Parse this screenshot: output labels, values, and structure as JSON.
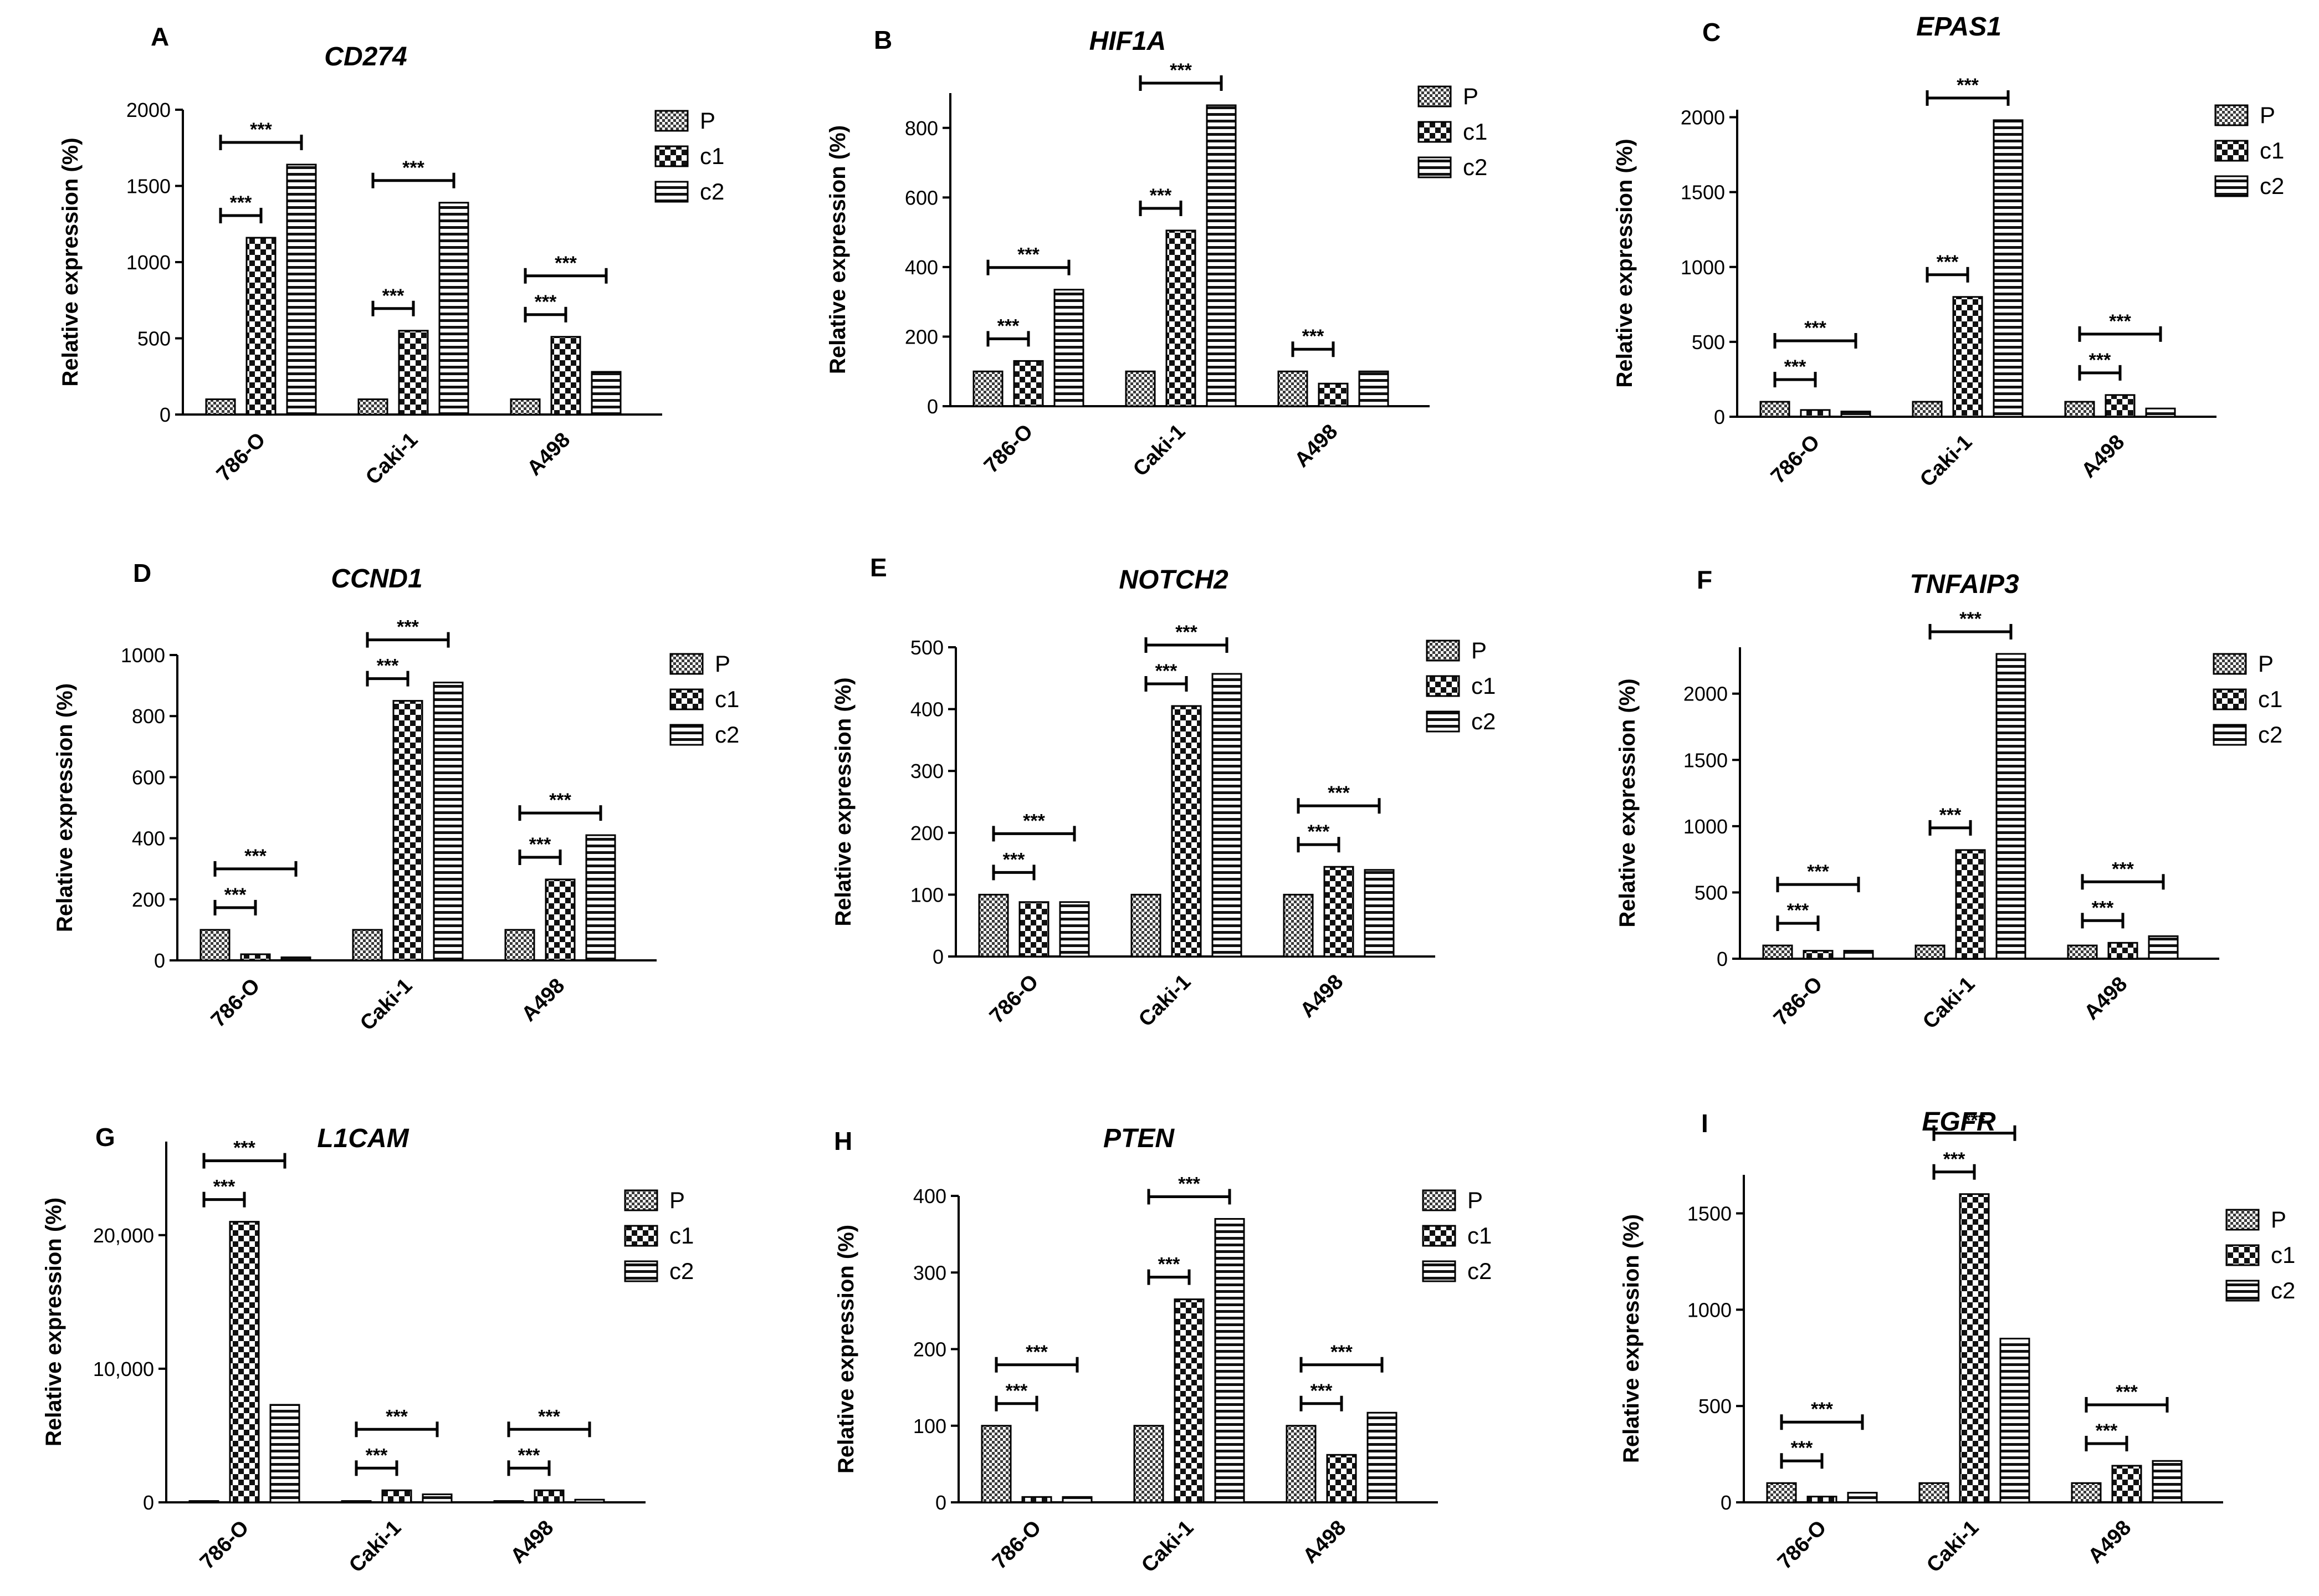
{
  "chart_data": [
    {
      "panel": "A",
      "type": "bar",
      "title": "CD274",
      "ylabel": "Relative expression (%)",
      "ylim": [
        0,
        2000
      ],
      "yticks": [
        0,
        500,
        1000,
        1500,
        2000
      ],
      "ytick_labels": [
        "0",
        "500",
        "1000",
        "1500",
        "2000"
      ],
      "categories": [
        "786-O",
        "Caki-1",
        "A498"
      ],
      "series": [
        {
          "name": "P",
          "values": [
            100,
            100,
            100
          ]
        },
        {
          "name": "c1",
          "values": [
            1160,
            550,
            510
          ]
        },
        {
          "name": "c2",
          "values": [
            1640,
            1390,
            280
          ]
        }
      ],
      "significance": [
        {
          "label": "***",
          "category": 0,
          "from": 0,
          "to": 1
        },
        {
          "label": "***",
          "category": 0,
          "from": 0,
          "to": 2
        },
        {
          "label": "***",
          "category": 1,
          "from": 0,
          "to": 1
        },
        {
          "label": "***",
          "category": 1,
          "from": 0,
          "to": 2
        },
        {
          "label": "***",
          "category": 2,
          "from": 0,
          "to": 1
        },
        {
          "label": "***",
          "category": 2,
          "from": 0,
          "to": 2
        }
      ]
    },
    {
      "panel": "B",
      "type": "bar",
      "title": "HIF1A",
      "ylabel": "Relative expression (%)",
      "ylim": [
        0,
        900
      ],
      "yticks": [
        0,
        200,
        400,
        600,
        800
      ],
      "ytick_labels": [
        "0",
        "200",
        "400",
        "600",
        "800"
      ],
      "categories": [
        "786-O",
        "Caki-1",
        "A498"
      ],
      "series": [
        {
          "name": "P",
          "values": [
            100,
            100,
            100
          ]
        },
        {
          "name": "c1",
          "values": [
            130,
            505,
            65
          ]
        },
        {
          "name": "c2",
          "values": [
            335,
            865,
            100
          ]
        }
      ],
      "significance": [
        {
          "label": "***",
          "category": 0,
          "from": 0,
          "to": 1
        },
        {
          "label": "***",
          "category": 0,
          "from": 0,
          "to": 2
        },
        {
          "label": "***",
          "category": 1,
          "from": 0,
          "to": 1
        },
        {
          "label": "***",
          "category": 1,
          "from": 0,
          "to": 2
        },
        {
          "label": "***",
          "category": 2,
          "from": 0,
          "to": 1
        }
      ]
    },
    {
      "panel": "C",
      "type": "bar",
      "title": "EPAS1",
      "ylabel": "Relative expression (%)",
      "ylim": [
        0,
        2050
      ],
      "yticks": [
        0,
        500,
        1000,
        1500,
        2000
      ],
      "ytick_labels": [
        "0",
        "500",
        "1000",
        "1500",
        "2000"
      ],
      "categories": [
        "786-O",
        "Caki-1",
        "A498"
      ],
      "series": [
        {
          "name": "P",
          "values": [
            100,
            100,
            100
          ]
        },
        {
          "name": "c1",
          "values": [
            45,
            800,
            145
          ]
        },
        {
          "name": "c2",
          "values": [
            35,
            1980,
            55
          ]
        }
      ],
      "significance": [
        {
          "label": "***",
          "category": 0,
          "from": 0,
          "to": 1
        },
        {
          "label": "***",
          "category": 0,
          "from": 0,
          "to": 2
        },
        {
          "label": "***",
          "category": 1,
          "from": 0,
          "to": 1
        },
        {
          "label": "***",
          "category": 1,
          "from": 0,
          "to": 2
        },
        {
          "label": "***",
          "category": 2,
          "from": 0,
          "to": 1
        },
        {
          "label": "***",
          "category": 2,
          "from": 0,
          "to": 2
        }
      ]
    },
    {
      "panel": "D",
      "type": "bar",
      "title": "CCND1",
      "ylabel": "Relative expression (%)",
      "ylim": [
        0,
        1000
      ],
      "yticks": [
        0,
        200,
        400,
        600,
        800,
        1000
      ],
      "ytick_labels": [
        "0",
        "200",
        "400",
        "600",
        "800",
        "1000"
      ],
      "categories": [
        "786-O",
        "Caki-1",
        "A498"
      ],
      "series": [
        {
          "name": "P",
          "values": [
            100,
            100,
            100
          ]
        },
        {
          "name": "c1",
          "values": [
            20,
            850,
            265
          ]
        },
        {
          "name": "c2",
          "values": [
            10,
            910,
            410
          ]
        }
      ],
      "significance": [
        {
          "label": "***",
          "category": 0,
          "from": 0,
          "to": 1
        },
        {
          "label": "***",
          "category": 0,
          "from": 0,
          "to": 2
        },
        {
          "label": "***",
          "category": 1,
          "from": 0,
          "to": 1
        },
        {
          "label": "***",
          "category": 1,
          "from": 0,
          "to": 2
        },
        {
          "label": "***",
          "category": 2,
          "from": 0,
          "to": 1
        },
        {
          "label": "***",
          "category": 2,
          "from": 0,
          "to": 2
        }
      ]
    },
    {
      "panel": "E",
      "type": "bar",
      "title": "NOTCH2",
      "ylabel": "Relative expression (%)",
      "ylim": [
        0,
        500
      ],
      "yticks": [
        0,
        100,
        200,
        300,
        400,
        500
      ],
      "ytick_labels": [
        "0",
        "100",
        "200",
        "300",
        "400",
        "500"
      ],
      "categories": [
        "786-O",
        "Caki-1",
        "A498"
      ],
      "series": [
        {
          "name": "P",
          "values": [
            100,
            100,
            100
          ]
        },
        {
          "name": "c1",
          "values": [
            88,
            405,
            145
          ]
        },
        {
          "name": "c2",
          "values": [
            88,
            457,
            140
          ]
        }
      ],
      "significance": [
        {
          "label": "***",
          "category": 0,
          "from": 0,
          "to": 1
        },
        {
          "label": "***",
          "category": 0,
          "from": 0,
          "to": 2
        },
        {
          "label": "***",
          "category": 1,
          "from": 0,
          "to": 1
        },
        {
          "label": "***",
          "category": 1,
          "from": 0,
          "to": 2
        },
        {
          "label": "***",
          "category": 2,
          "from": 0,
          "to": 1
        },
        {
          "label": "***",
          "category": 2,
          "from": 0,
          "to": 2
        }
      ]
    },
    {
      "panel": "F",
      "type": "bar",
      "title": "TNFAIP3",
      "ylabel": "Relative expression (%)",
      "ylim": [
        0,
        2350
      ],
      "yticks": [
        0,
        500,
        1000,
        1500,
        2000
      ],
      "ytick_labels": [
        "0",
        "500",
        "1000",
        "1500",
        "2000"
      ],
      "categories": [
        "786-O",
        "Caki-1",
        "A498"
      ],
      "series": [
        {
          "name": "P",
          "values": [
            100,
            100,
            100
          ]
        },
        {
          "name": "c1",
          "values": [
            60,
            820,
            120
          ]
        },
        {
          "name": "c2",
          "values": [
            60,
            2300,
            170
          ]
        }
      ],
      "significance": [
        {
          "label": "***",
          "category": 0,
          "from": 0,
          "to": 1
        },
        {
          "label": "***",
          "category": 0,
          "from": 0,
          "to": 2
        },
        {
          "label": "***",
          "category": 1,
          "from": 0,
          "to": 1
        },
        {
          "label": "***",
          "category": 1,
          "from": 0,
          "to": 2
        },
        {
          "label": "***",
          "category": 2,
          "from": 0,
          "to": 1
        },
        {
          "label": "***",
          "category": 2,
          "from": 0,
          "to": 2
        }
      ]
    },
    {
      "panel": "G",
      "type": "bar",
      "title": "L1CAM",
      "ylabel": "Relative expression (%)",
      "ylim": [
        0,
        27000
      ],
      "yticks": [
        0,
        10000,
        20000
      ],
      "ytick_labels": [
        "0",
        "10,000",
        "20,000"
      ],
      "categories": [
        "786-O",
        "Caki-1",
        "A498"
      ],
      "series": [
        {
          "name": "P",
          "values": [
            100,
            100,
            100
          ]
        },
        {
          "name": "c1",
          "values": [
            21000,
            900,
            900
          ]
        },
        {
          "name": "c2",
          "values": [
            7300,
            600,
            200
          ]
        }
      ],
      "significance": [
        {
          "label": "***",
          "category": 0,
          "from": 0,
          "to": 1
        },
        {
          "label": "***",
          "category": 0,
          "from": 0,
          "to": 2
        },
        {
          "label": "***",
          "category": 1,
          "from": 0,
          "to": 1
        },
        {
          "label": "***",
          "category": 1,
          "from": 0,
          "to": 2
        },
        {
          "label": "***",
          "category": 2,
          "from": 0,
          "to": 1
        },
        {
          "label": "***",
          "category": 2,
          "from": 0,
          "to": 2
        }
      ]
    },
    {
      "panel": "H",
      "type": "bar",
      "title": "PTEN",
      "ylabel": "Relative expression (%)",
      "ylim": [
        0,
        400
      ],
      "yticks": [
        0,
        100,
        200,
        300,
        400
      ],
      "ytick_labels": [
        "0",
        "100",
        "200",
        "300",
        "400"
      ],
      "categories": [
        "786-O",
        "Caki-1",
        "A498"
      ],
      "series": [
        {
          "name": "P",
          "values": [
            100,
            100,
            100
          ]
        },
        {
          "name": "c1",
          "values": [
            7,
            265,
            62
          ]
        },
        {
          "name": "c2",
          "values": [
            7,
            370,
            117
          ]
        }
      ],
      "significance": [
        {
          "label": "***",
          "category": 0,
          "from": 0,
          "to": 1
        },
        {
          "label": "***",
          "category": 0,
          "from": 0,
          "to": 2
        },
        {
          "label": "***",
          "category": 1,
          "from": 0,
          "to": 1
        },
        {
          "label": "***",
          "category": 1,
          "from": 0,
          "to": 2
        },
        {
          "label": "***",
          "category": 2,
          "from": 0,
          "to": 1
        },
        {
          "label": "***",
          "category": 2,
          "from": 0,
          "to": 2
        }
      ]
    },
    {
      "panel": "I",
      "type": "bar",
      "title": "EGFR",
      "ylabel": "Relative expression (%)",
      "ylim": [
        0,
        1700
      ],
      "yticks": [
        0,
        500,
        1000,
        1500
      ],
      "ytick_labels": [
        "0",
        "500",
        "1000",
        "1500"
      ],
      "categories": [
        "786-O",
        "Caki-1",
        "A498"
      ],
      "series": [
        {
          "name": "P",
          "values": [
            100,
            100,
            100
          ]
        },
        {
          "name": "c1",
          "values": [
            30,
            1600,
            190
          ]
        },
        {
          "name": "c2",
          "values": [
            50,
            850,
            215
          ]
        }
      ],
      "significance": [
        {
          "label": "***",
          "category": 0,
          "from": 0,
          "to": 1
        },
        {
          "label": "***",
          "category": 0,
          "from": 0,
          "to": 2
        },
        {
          "label": "***",
          "category": 1,
          "from": 0,
          "to": 1
        },
        {
          "label": "***",
          "category": 1,
          "from": 0,
          "to": 2
        },
        {
          "label": "***",
          "category": 2,
          "from": 0,
          "to": 1
        },
        {
          "label": "***",
          "category": 2,
          "from": 0,
          "to": 2
        }
      ]
    }
  ]
}
